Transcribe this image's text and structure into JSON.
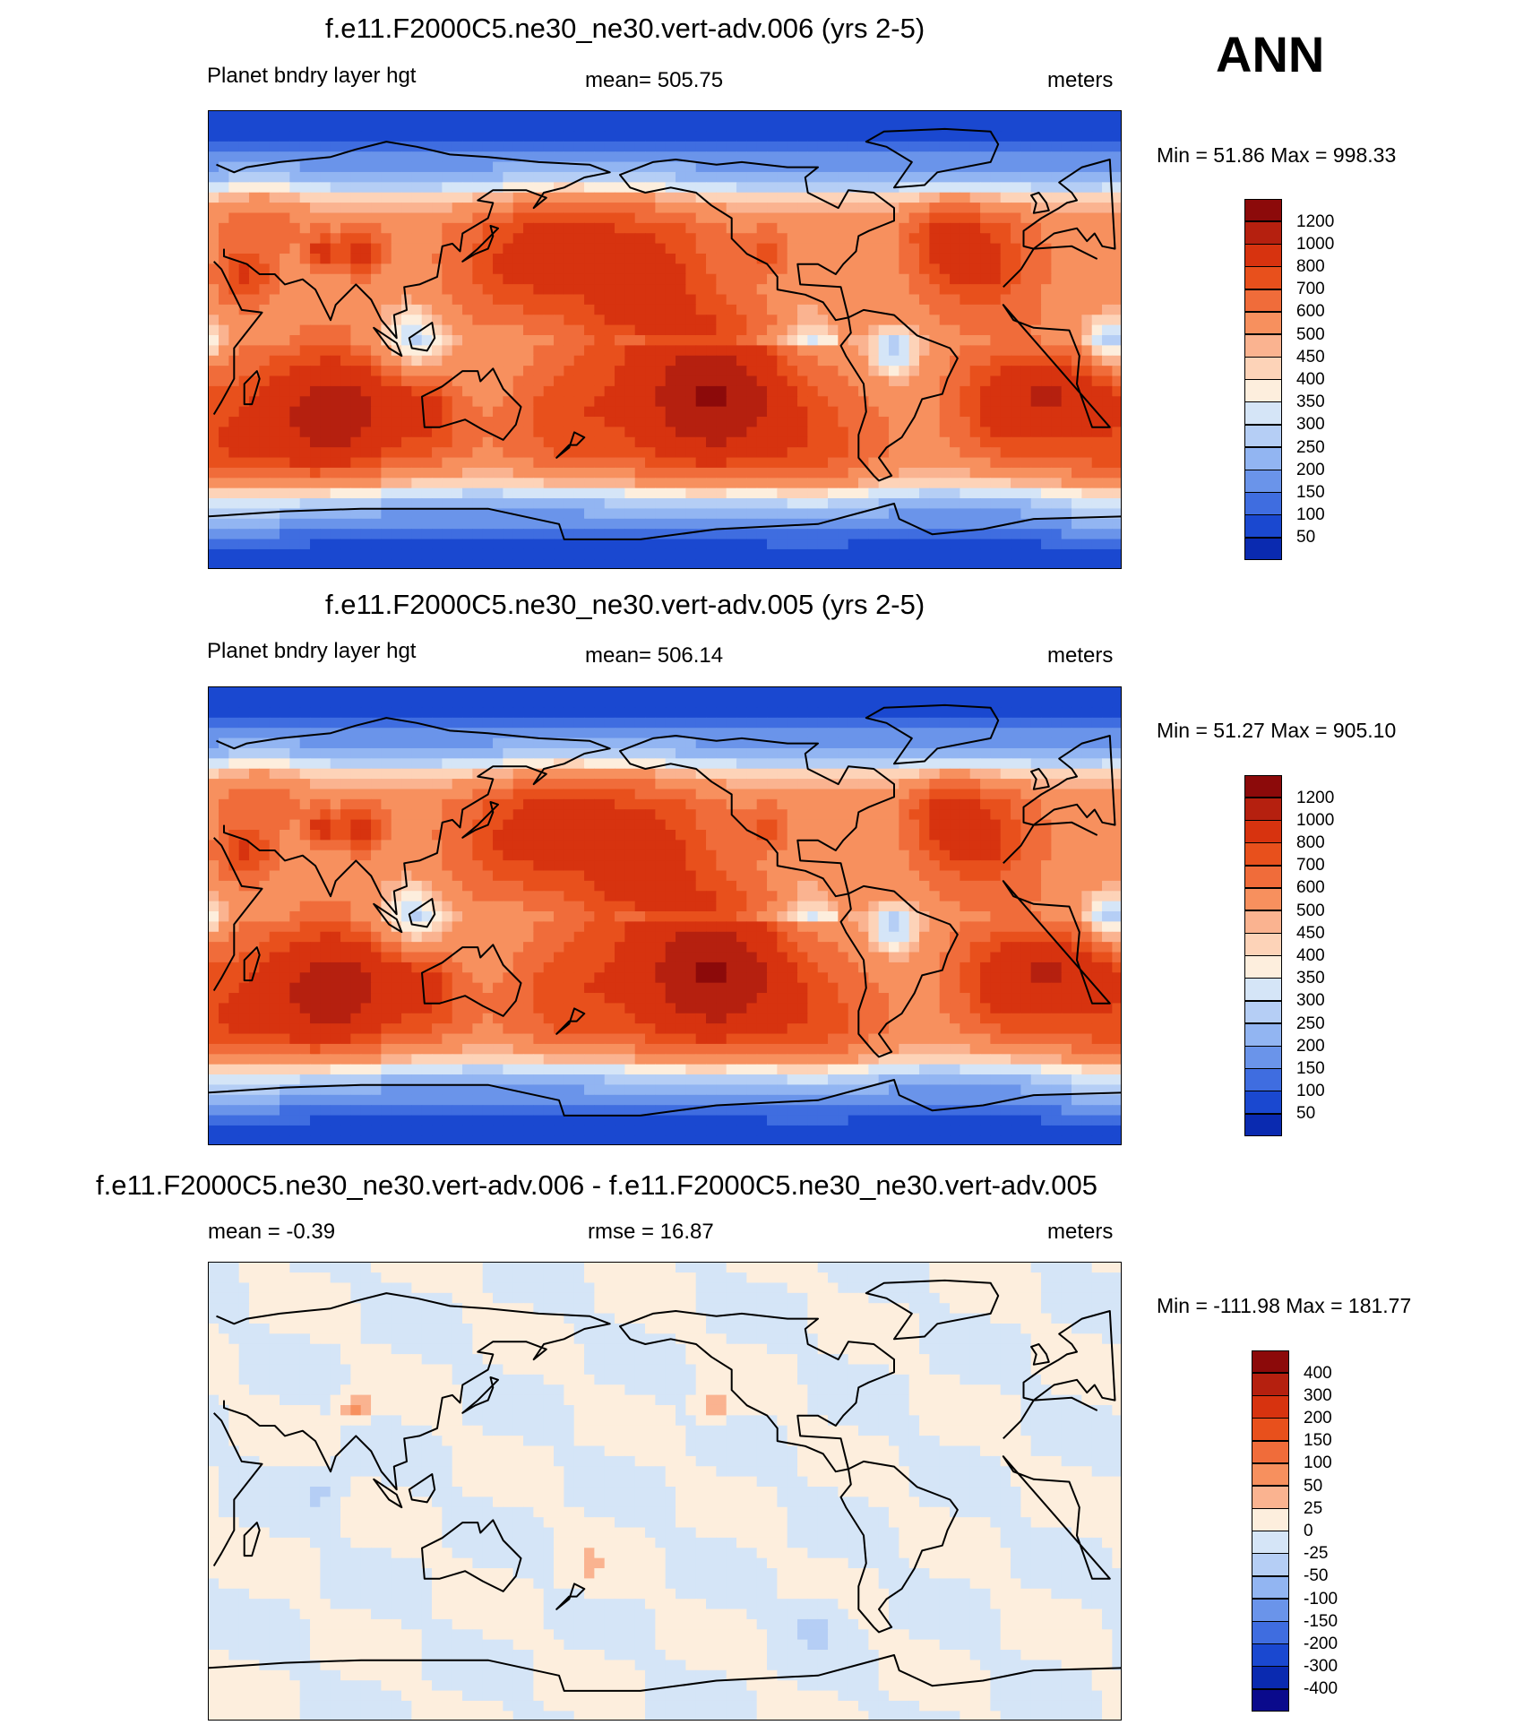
{
  "header": {
    "season_label": "ANN"
  },
  "panels": [
    {
      "title": "f.e11.F2000C5.ne30_ne30.vert-adv.006 (yrs 2-5)",
      "left": "Planet bndry layer hgt",
      "center": "mean= 505.75",
      "right": "meters",
      "minmax": "Min =  51.86 Max = 998.33",
      "kind": "field"
    },
    {
      "title": "f.e11.F2000C5.ne30_ne30.vert-adv.005 (yrs 2-5)",
      "left": "Planet bndry layer hgt",
      "center": "mean= 506.14",
      "right": "meters",
      "minmax": "Min =  51.27 Max = 905.10",
      "kind": "field"
    },
    {
      "title": "f.e11.F2000C5.ne30_ne30.vert-adv.006 - f.e11.F2000C5.ne30_ne30.vert-adv.005",
      "left": "mean =  -0.39",
      "center": "rmse =  16.87",
      "right": "meters",
      "minmax": "Min = -111.98 Max = 181.77",
      "kind": "diff"
    }
  ],
  "colorbars": {
    "field": {
      "labels": [
        "1200",
        "1000",
        "800",
        "700",
        "600",
        "500",
        "450",
        "400",
        "350",
        "300",
        "250",
        "200",
        "150",
        "100",
        "50"
      ],
      "colors": [
        "#8c0a0a",
        "#b5200f",
        "#d7330f",
        "#e8501c",
        "#f06c3a",
        "#f7905e",
        "#fab390",
        "#fdd3b8",
        "#fdeedd",
        "#d5e5f7",
        "#b5cef5",
        "#92b5f2",
        "#6a94ea",
        "#3f6de0",
        "#1a48d0",
        "#0a2ab0"
      ]
    },
    "diff": {
      "labels": [
        "400",
        "300",
        "200",
        "150",
        "100",
        "50",
        "25",
        "0",
        "-25",
        "-50",
        "-100",
        "-150",
        "-200",
        "-300",
        "-400"
      ],
      "colors": [
        "#8c0a0a",
        "#b5200f",
        "#d7330f",
        "#e8501c",
        "#f06c3a",
        "#f7905e",
        "#fab390",
        "#fdeedd",
        "#d5e5f7",
        "#b5cef5",
        "#92b5f2",
        "#6a94ea",
        "#3f6de0",
        "#1a48d0",
        "#0a2ab0",
        "#0a0a8c"
      ]
    }
  },
  "chart_data": [
    {
      "type": "heatmap",
      "title": "f.e11.F2000C5.ne30_ne30.vert-adv.006 (yrs 2-5)",
      "variable": "Planet bndry layer hgt",
      "units": "meters",
      "mean": 505.75,
      "min": 51.86,
      "max": 998.33,
      "contour_levels": [
        50,
        100,
        150,
        200,
        250,
        300,
        350,
        400,
        450,
        500,
        600,
        700,
        800,
        1000,
        1200
      ]
    },
    {
      "type": "heatmap",
      "title": "f.e11.F2000C5.ne30_ne30.vert-adv.005 (yrs 2-5)",
      "variable": "Planet bndry layer hgt",
      "units": "meters",
      "mean": 506.14,
      "min": 51.27,
      "max": 905.1,
      "contour_levels": [
        50,
        100,
        150,
        200,
        250,
        300,
        350,
        400,
        450,
        500,
        600,
        700,
        800,
        1000,
        1200
      ]
    },
    {
      "type": "heatmap",
      "title": "f.e11.F2000C5.ne30_ne30.vert-adv.006 - f.e11.F2000C5.ne30_ne30.vert-adv.005",
      "units": "meters",
      "mean": -0.39,
      "rmse": 16.87,
      "min": -111.98,
      "max": 181.77,
      "contour_levels": [
        -400,
        -300,
        -200,
        -150,
        -100,
        -50,
        -25,
        0,
        25,
        50,
        100,
        150,
        200,
        300,
        400
      ]
    }
  ]
}
